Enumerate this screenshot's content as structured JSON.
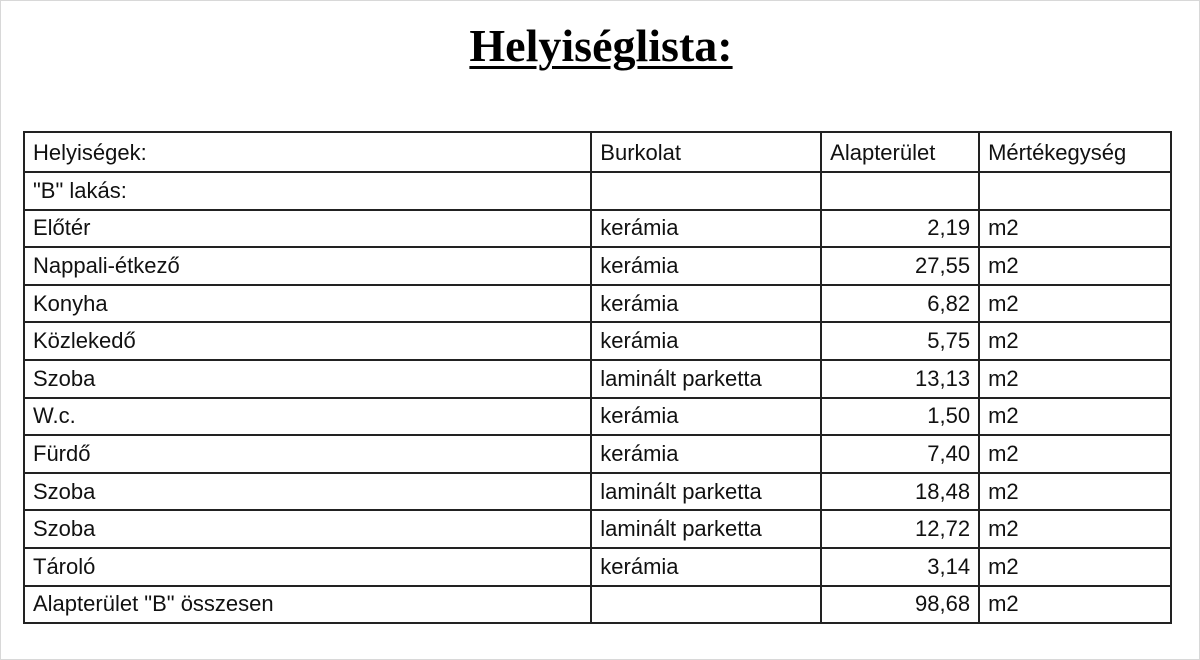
{
  "title": "Helyiséglista:",
  "table": {
    "headers": [
      "Helyiségek:",
      "Burkolat",
      "Alapterület",
      "Mértékegység"
    ],
    "rows": [
      [
        "\"B\" lakás:",
        "",
        "",
        ""
      ],
      [
        "Előtér",
        "kerámia",
        "2,19",
        "m2"
      ],
      [
        "Nappali-étkező",
        "kerámia",
        "27,55",
        "m2"
      ],
      [
        "Konyha",
        "kerámia",
        "6,82",
        "m2"
      ],
      [
        "Közlekedő",
        "kerámia",
        "5,75",
        "m2"
      ],
      [
        "Szoba",
        "laminált parketta",
        "13,13",
        "m2"
      ],
      [
        "W.c.",
        "kerámia",
        "1,50",
        "m2"
      ],
      [
        "Fürdő",
        "kerámia",
        "7,40",
        "m2"
      ],
      [
        "Szoba",
        "laminált parketta",
        "18,48",
        "m2"
      ],
      [
        "Szoba",
        "laminált parketta",
        "12,72",
        "m2"
      ],
      [
        "Tároló",
        "kerámia",
        "3,14",
        "m2"
      ],
      [
        "Alapterület \"B\" összesen",
        "",
        "98,68",
        "m2"
      ]
    ]
  }
}
